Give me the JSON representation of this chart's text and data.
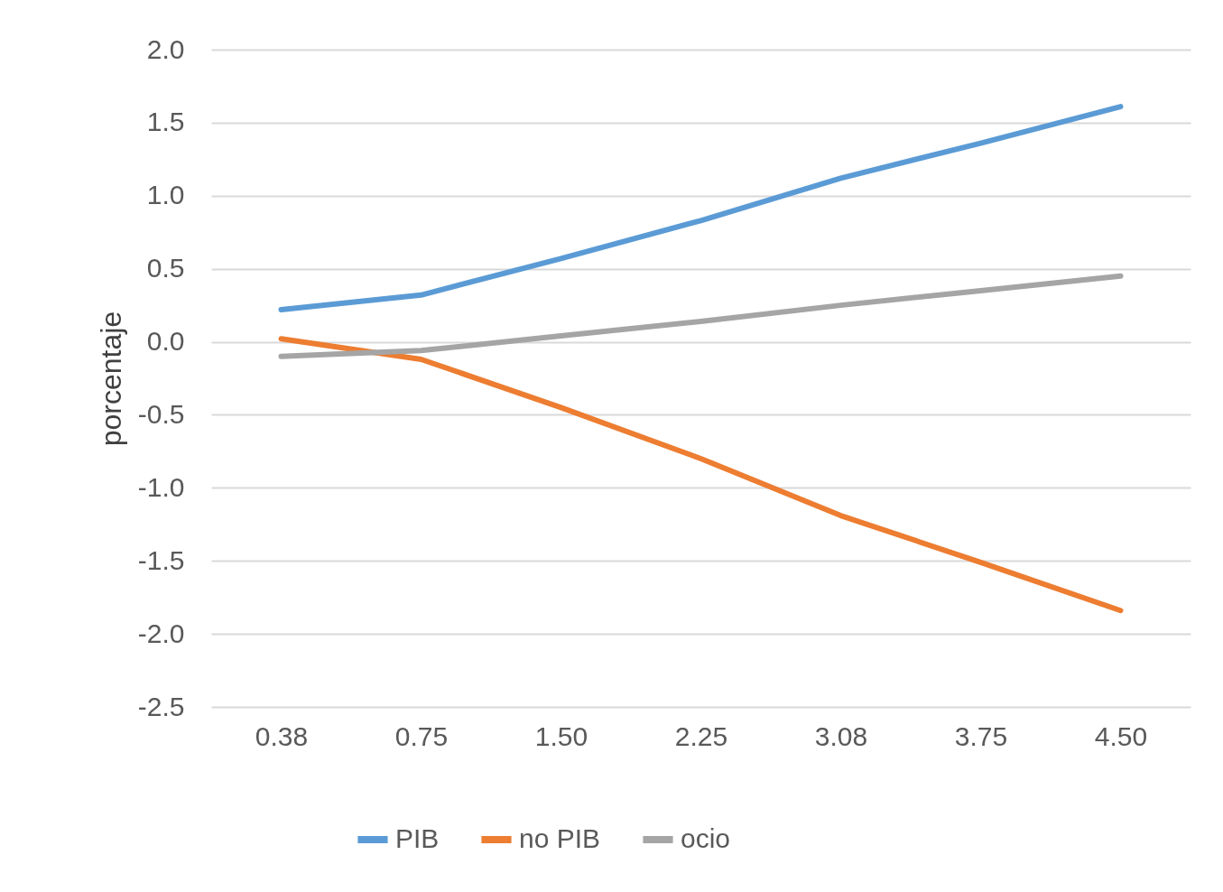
{
  "chart_data": {
    "type": "line",
    "ylabel": "porcentaje",
    "categories": [
      "0.38",
      "0.75",
      "1.50",
      "2.25",
      "3.08",
      "3.75",
      "4.50"
    ],
    "series": [
      {
        "name": "PIB",
        "color": "#5b9bd5",
        "values": [
          0.22,
          0.32,
          0.57,
          0.83,
          1.12,
          1.36,
          1.61
        ]
      },
      {
        "name": "no PIB",
        "color": "#ed7d31",
        "values": [
          0.02,
          -0.12,
          -0.45,
          -0.8,
          -1.19,
          -1.51,
          -1.84
        ]
      },
      {
        "name": "ocio",
        "color": "#a5a5a5",
        "values": [
          -0.1,
          -0.06,
          0.04,
          0.14,
          0.25,
          0.35,
          0.45
        ]
      }
    ],
    "ylim": [
      -2.5,
      2.0
    ],
    "yticks": [
      {
        "value": -2.5,
        "label": "-2.5"
      },
      {
        "value": -2,
        "label": "-2.0"
      },
      {
        "value": -1.5,
        "label": "-1.5"
      },
      {
        "value": -1,
        "label": "-1.0"
      },
      {
        "value": -0.5,
        "label": "-0.5"
      },
      {
        "value": 0,
        "label": "0.0"
      },
      {
        "value": 0.5,
        "label": "0.5"
      },
      {
        "value": 1,
        "label": "1.0"
      },
      {
        "value": 1.5,
        "label": "1.5"
      },
      {
        "value": 2,
        "label": "2.0"
      }
    ],
    "grid": "y",
    "legend": "bottom",
    "marker": "none",
    "line_style": "solid"
  }
}
